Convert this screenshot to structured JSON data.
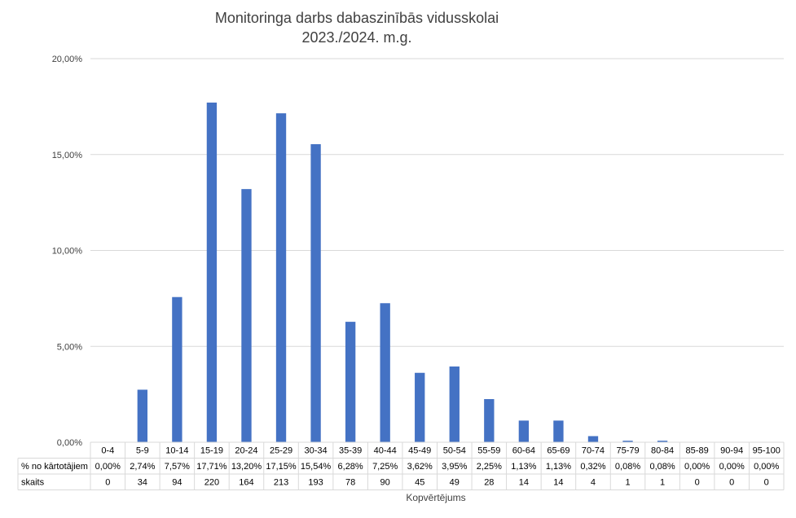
{
  "chart_data": {
    "type": "bar",
    "title": "Monitoringa darbs dabaszinībās vidusskolai",
    "subtitle": "2023./2024. m.g.",
    "xlabel": "Kopvērtējums",
    "ylabel": "",
    "ylim": [
      0,
      20
    ],
    "y_ticks": [
      0,
      5,
      10,
      15,
      20
    ],
    "y_tick_labels": [
      "0,00%",
      "5,00%",
      "10,00%",
      "15,00%",
      "20,00%"
    ],
    "grid": true,
    "bar_color": "#4472C4",
    "categories": [
      "0-4",
      "5-9",
      "10-14",
      "15-19",
      "20-24",
      "25-29",
      "30-34",
      "35-39",
      "40-44",
      "45-49",
      "50-54",
      "55-59",
      "60-64",
      "65-69",
      "70-74",
      "75-79",
      "80-84",
      "85-89",
      "90-94",
      "95-100"
    ],
    "series": [
      {
        "name": "% no kārtotājiem",
        "values": [
          0,
          2.74,
          7.57,
          17.71,
          13.2,
          17.15,
          15.54,
          6.28,
          7.25,
          3.62,
          3.95,
          2.25,
          1.13,
          1.13,
          0.32,
          0.08,
          0.08,
          0,
          0,
          0
        ],
        "labels": [
          "0,00%",
          "2,74%",
          "7,57%",
          "17,71%",
          "13,20%",
          "17,15%",
          "15,54%",
          "6,28%",
          "7,25%",
          "3,62%",
          "3,95%",
          "2,25%",
          "1,13%",
          "1,13%",
          "0,32%",
          "0,08%",
          "0,08%",
          "0,00%",
          "0,00%",
          "0,00%"
        ]
      }
    ],
    "table_rows": [
      {
        "label": "% no kārtotājiem",
        "cells": [
          "0,00%",
          "2,74%",
          "7,57%",
          "17,71%",
          "13,20%",
          "17,15%",
          "15,54%",
          "6,28%",
          "7,25%",
          "3,62%",
          "3,95%",
          "2,25%",
          "1,13%",
          "1,13%",
          "0,32%",
          "0,08%",
          "0,08%",
          "0,00%",
          "0,00%",
          "0,00%"
        ]
      },
      {
        "label": "skaits",
        "cells": [
          "0",
          "34",
          "94",
          "220",
          "164",
          "213",
          "193",
          "78",
          "90",
          "45",
          "49",
          "28",
          "14",
          "14",
          "4",
          "1",
          "1",
          "0",
          "0",
          "0"
        ]
      }
    ]
  }
}
